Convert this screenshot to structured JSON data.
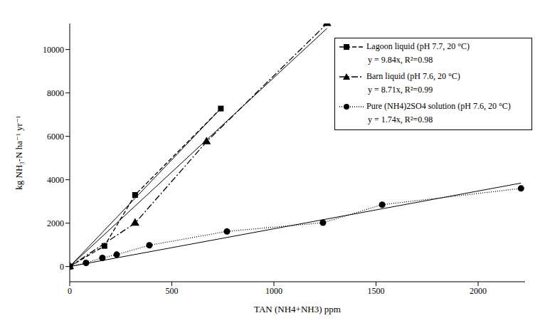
{
  "chart_data": {
    "type": "scatter",
    "x_label": "TAN (NH4+NH3) ppm",
    "y_label": "kg NH₃-N ha⁻¹ yr⁻¹",
    "xlim": [
      0,
      2230
    ],
    "xticks": [
      0,
      500,
      1000,
      1500,
      2000
    ],
    "ylim": [
      -700,
      11200
    ],
    "yticks": [
      0,
      2000,
      4000,
      6000,
      8000,
      10000
    ],
    "legend": "upper right",
    "series": [
      {
        "name": "Lagoon liquid (pH 7.7, 20 °C)",
        "color": "#000000",
        "marker": "square",
        "line_style": "dashed",
        "x": [
          0,
          170,
          320,
          740
        ],
        "values": [
          0,
          950,
          3300,
          7280
        ],
        "fit": {
          "slope": 9.84,
          "equation": "y = 9.84x, R²=0.98"
        }
      },
      {
        "name": "Barn liquid (pH 7.6, 20 °C)",
        "color": "#000000",
        "marker": "triangle",
        "line_style": "dashdot",
        "x": [
          0,
          320,
          670,
          1260
        ],
        "values": [
          0,
          2000,
          5750,
          11200
        ],
        "fit": {
          "slope": 8.71,
          "equation": "y = 8.71x, R²=0.99"
        }
      },
      {
        "name": "Pure (NH4)2SO4 solution (pH 7.6, 20 °C)",
        "color": "#000000",
        "marker": "circle",
        "line_style": "dotted",
        "x": [
          0,
          80,
          160,
          230,
          390,
          770,
          1240,
          1530,
          2210
        ],
        "values": [
          0,
          170,
          400,
          550,
          980,
          1620,
          2020,
          2850,
          3600
        ],
        "fit": {
          "slope": 1.74,
          "equation": "y = 1.74x, R²=0.98"
        }
      }
    ]
  }
}
